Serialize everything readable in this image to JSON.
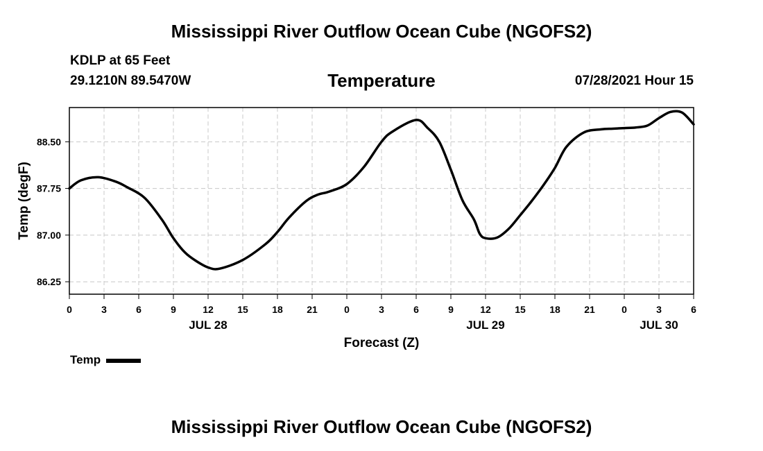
{
  "page": {
    "title_top": "Mississippi River Outflow Ocean Cube (NGOFS2)",
    "title_bottom": "Mississippi River Outflow Ocean Cube (NGOFS2)",
    "station": "KDLP at 65 Feet",
    "coords": "29.1210N  89.5470W",
    "timestamp": "07/28/2021 Hour 15"
  },
  "chart_data": {
    "type": "line",
    "title": "Temperature",
    "xlabel": "Forecast (Z)",
    "ylabel": "Temp (degF)",
    "x_unit": "hours since 2021-07-27 00Z",
    "xlim": [
      0,
      54
    ],
    "ylim": [
      86.05,
      89.05
    ],
    "grid": true,
    "legend": {
      "position": "bottom-left",
      "label": "Temp"
    },
    "x_ticks": [
      {
        "x": 0,
        "label": "0"
      },
      {
        "x": 3,
        "label": "3"
      },
      {
        "x": 6,
        "label": "6"
      },
      {
        "x": 9,
        "label": "9"
      },
      {
        "x": 12,
        "label": "12"
      },
      {
        "x": 15,
        "label": "15"
      },
      {
        "x": 18,
        "label": "18"
      },
      {
        "x": 21,
        "label": "21"
      },
      {
        "x": 24,
        "label": "0"
      },
      {
        "x": 27,
        "label": "3"
      },
      {
        "x": 30,
        "label": "6"
      },
      {
        "x": 33,
        "label": "9"
      },
      {
        "x": 36,
        "label": "12"
      },
      {
        "x": 39,
        "label": "15"
      },
      {
        "x": 42,
        "label": "18"
      },
      {
        "x": 45,
        "label": "21"
      },
      {
        "x": 48,
        "label": "0"
      },
      {
        "x": 51,
        "label": "3"
      },
      {
        "x": 54,
        "label": "6"
      }
    ],
    "date_labels": [
      {
        "x": 12,
        "label": "JUL 28"
      },
      {
        "x": 36,
        "label": "JUL 29"
      },
      {
        "x": 51,
        "label": "JUL 30"
      }
    ],
    "y_ticks": [
      {
        "y": 86.25,
        "label": "86.25"
      },
      {
        "y": 87.0,
        "label": "87.00"
      },
      {
        "y": 87.75,
        "label": "87.75"
      },
      {
        "y": 88.5,
        "label": "88.50"
      }
    ],
    "series": [
      {
        "name": "Temp",
        "x": [
          0,
          1,
          2.5,
          4,
          5,
          6.5,
          8,
          9,
          10,
          11,
          12,
          13,
          15,
          17,
          18,
          19,
          20.5,
          21.5,
          22.5,
          24,
          25.5,
          27,
          28,
          30,
          31,
          32,
          33,
          34,
          35,
          35.5,
          36,
          37,
          38,
          39,
          40,
          41,
          42,
          43,
          44.5,
          46,
          47,
          48,
          49,
          50,
          51,
          52,
          53,
          54
        ],
        "y": [
          87.75,
          87.88,
          87.93,
          87.86,
          87.77,
          87.6,
          87.25,
          86.95,
          86.72,
          86.58,
          86.48,
          86.46,
          86.6,
          86.86,
          87.05,
          87.28,
          87.55,
          87.65,
          87.7,
          87.82,
          88.1,
          88.5,
          88.67,
          88.85,
          88.72,
          88.5,
          88.05,
          87.56,
          87.25,
          87.02,
          86.95,
          86.96,
          87.1,
          87.32,
          87.55,
          87.8,
          88.08,
          88.42,
          88.65,
          88.7,
          88.71,
          88.72,
          88.73,
          88.76,
          88.88,
          88.98,
          88.97,
          88.78
        ]
      }
    ]
  }
}
